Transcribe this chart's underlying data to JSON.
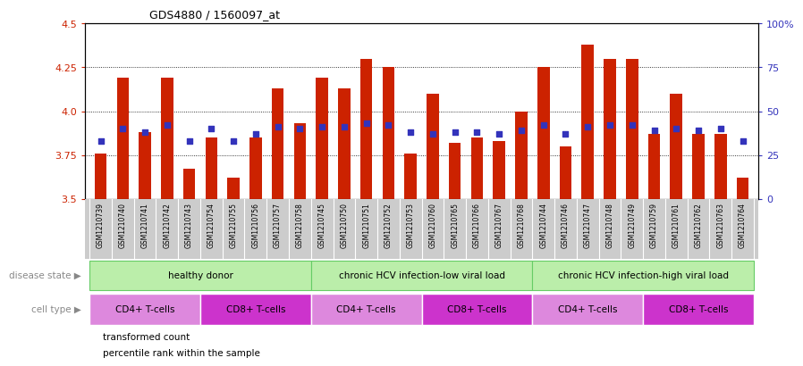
{
  "title": "GDS4880 / 1560097_at",
  "sample_labels": [
    "GSM1210739",
    "GSM1210740",
    "GSM1210741",
    "GSM1210742",
    "GSM1210743",
    "GSM1210754",
    "GSM1210755",
    "GSM1210756",
    "GSM1210757",
    "GSM1210758",
    "GSM1210745",
    "GSM1210750",
    "GSM1210751",
    "GSM1210752",
    "GSM1210753",
    "GSM1210760",
    "GSM1210765",
    "GSM1210766",
    "GSM1210767",
    "GSM1210768",
    "GSM1210744",
    "GSM1210746",
    "GSM1210747",
    "GSM1210748",
    "GSM1210749",
    "GSM1210759",
    "GSM1210761",
    "GSM1210762",
    "GSM1210763",
    "GSM1210764"
  ],
  "bar_values": [
    3.76,
    4.19,
    3.88,
    4.19,
    3.67,
    3.85,
    3.62,
    3.85,
    4.13,
    3.93,
    4.19,
    4.13,
    4.3,
    4.25,
    3.76,
    4.1,
    3.82,
    3.85,
    3.83,
    4.0,
    4.25,
    3.8,
    4.38,
    4.3,
    4.3,
    3.87,
    4.1,
    3.87,
    3.87,
    3.62
  ],
  "percentile_values": [
    33,
    40,
    38,
    42,
    33,
    40,
    33,
    37,
    41,
    40,
    41,
    41,
    43,
    42,
    38,
    37,
    38,
    38,
    37,
    39,
    42,
    37,
    41,
    42,
    42,
    39,
    40,
    39,
    40,
    33
  ],
  "y_min": 3.5,
  "y_max": 4.5,
  "yticks": [
    3.5,
    3.75,
    4.0,
    4.25,
    4.5
  ],
  "right_yticks": [
    0,
    25,
    50,
    75,
    100
  ],
  "disease_state_groups": [
    {
      "label": "healthy donor",
      "start": 0,
      "end": 9
    },
    {
      "label": "chronic HCV infection-low viral load",
      "start": 10,
      "end": 19
    },
    {
      "label": "chronic HCV infection-high viral load",
      "start": 20,
      "end": 29
    }
  ],
  "cell_type_groups": [
    {
      "label": "CD4+ T-cells",
      "start": 0,
      "end": 4
    },
    {
      "label": "CD8+ T-cells",
      "start": 5,
      "end": 9
    },
    {
      "label": "CD4+ T-cells",
      "start": 10,
      "end": 14
    },
    {
      "label": "CD8+ T-cells",
      "start": 15,
      "end": 19
    },
    {
      "label": "CD4+ T-cells",
      "start": 20,
      "end": 24
    },
    {
      "label": "CD8+ T-cells",
      "start": 25,
      "end": 29
    }
  ],
  "bar_color": "#cc2200",
  "blue_color": "#3333bb",
  "disease_state_color": "#bbeeaa",
  "disease_state_border": "#66cc66",
  "cell_cd4_color": "#dd88dd",
  "cell_cd8_color": "#cc33cc",
  "xtick_bg": "#cccccc",
  "label_color": "#888888"
}
